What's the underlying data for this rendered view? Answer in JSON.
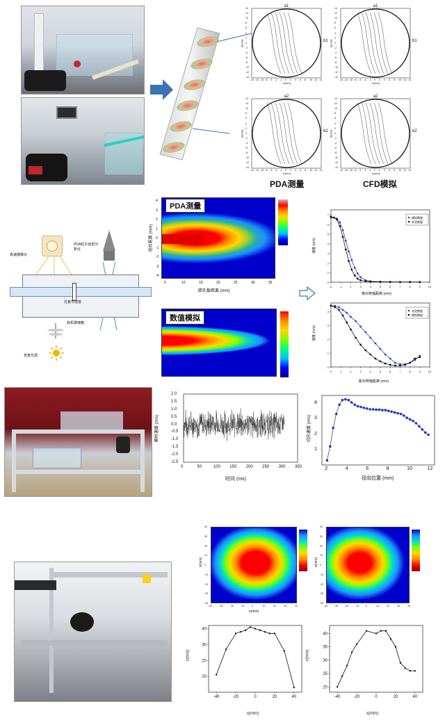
{
  "section1": {
    "contour_titles": [
      "a1",
      "a1",
      "a2",
      "a2"
    ],
    "side_labels": [
      "b1",
      "b1",
      "b2",
      "b2"
    ],
    "y_axis_label": "Z(mm)",
    "x_axis_label": "Y(mm)",
    "x_ticks": [
      "-14",
      "-12",
      "-10",
      "-8",
      "-6",
      "-4",
      "-2",
      "0",
      "2",
      "4",
      "6",
      "8",
      "10",
      "12",
      "14"
    ],
    "y_ticks": [
      "14",
      "12",
      "10",
      "8",
      "6",
      "4",
      "2",
      "0",
      "-2",
      "-4",
      "-6",
      "-8",
      "-10",
      "-12",
      "-14"
    ],
    "caption_left": "PDA测量",
    "caption_right": "CFD模拟"
  },
  "section2": {
    "pda_title": "PDA测量",
    "sim_title": "数值模拟",
    "pda_xlabel": "距孔板距离 (mm)",
    "pda_ylabel": "径向距离 (mm)",
    "pda_xticks": [
      "5",
      "10",
      "15",
      "20",
      "25",
      "30",
      "35"
    ],
    "pda_yticks": [
      "4",
      "3",
      "2",
      "1",
      "0",
      "-1",
      "-2",
      "-3",
      "-4"
    ],
    "diagram_labels": {
      "camera": "高速摄像仪",
      "pda": "PDA粒子动态分析仪",
      "valve": "孔板节流管",
      "tank": "有机玻璃箱",
      "light": "背景光源"
    },
    "right_chart1": {
      "ylabel": "速度 (m/s)",
      "xlabel": "离对称轴距离 (mm)",
      "legend": [
        "模拟数据",
        "实验数据"
      ],
      "yticks": [
        "7",
        "6",
        "5",
        "4",
        "3",
        "2",
        "1",
        "0"
      ],
      "xticks": [
        "0",
        "1",
        "2",
        "3",
        "4",
        "5",
        "6",
        "7",
        "8",
        "9",
        "10"
      ]
    },
    "right_chart2": {
      "ylabel": "速度 (m/s)",
      "xlabel": "距对称轴距离 (mm)",
      "legend": [
        "实验数据",
        "模拟数据"
      ],
      "yticks": [
        "4",
        "3",
        "2",
        "1",
        "0"
      ],
      "xticks": [
        "0",
        "1",
        "2",
        "3",
        "4",
        "5",
        "6",
        "7",
        "8",
        "9",
        "10"
      ]
    }
  },
  "section3": {
    "ts_ylabel": "瞬时速度 (m/s)",
    "ts_xlabel": "时间 (ms)",
    "ts_yticks": [
      "2.0",
      "1.5",
      "1.0",
      "0.5",
      "0.0",
      "-0.5",
      "-1.0",
      "-1.5",
      "-2.0",
      "-2.5"
    ],
    "ts_xticks": [
      "0",
      "50",
      "100",
      "150",
      "200",
      "250",
      "300",
      "350"
    ],
    "prof_ylabel": "切向速度 (m/s)",
    "prof_xlabel": "径向位置 (mm)",
    "prof_yticks": [
      "4",
      "3",
      "2",
      "1"
    ],
    "prof_xticks": [
      "2",
      "4",
      "6",
      "8",
      "10",
      "12"
    ]
  },
  "section4": {
    "map_ylabel": "z(mm)",
    "map_xlabel": "x(mm)",
    "map_xticks": [
      "-40",
      "-30",
      "-20",
      "-10",
      "0",
      "10",
      "20",
      "30",
      "40"
    ],
    "map_yticks": [
      "40",
      "30",
      "20",
      "10",
      "0",
      "-10",
      "-20",
      "-30",
      "-40"
    ],
    "line1_ylabel": "v(m/s)",
    "line1_xlabel": "x(mm)",
    "line1_yticks": [
      "40",
      "30",
      "20",
      "10"
    ],
    "line1_xticks": [
      "-40",
      "-20",
      "0",
      "20",
      "40"
    ],
    "line2_ylabel": "v(m/s)",
    "line2_xlabel": "x(mm)",
    "line2_yticks": [
      "40",
      "35",
      "30",
      "25",
      "20"
    ],
    "line2_xticks": [
      "-40",
      "-20",
      "0",
      "20",
      "40"
    ]
  },
  "chart_data": [
    {
      "type": "line",
      "ylabel": "速度 (m/s)",
      "xlabel": "离对称轴距离 (mm)",
      "ylim": [
        0,
        7.5
      ],
      "xlim": [
        0,
        10
      ],
      "series": [
        {
          "name": "模拟数据",
          "x": [
            0,
            0.3,
            0.6,
            0.9,
            1.2,
            1.5,
            1.8,
            2.1,
            2.4,
            2.7,
            3.0,
            3.5,
            4,
            5,
            6,
            7,
            8,
            9
          ],
          "y": [
            6.7,
            6.7,
            6.6,
            6.2,
            5.4,
            4.3,
            3.2,
            2.3,
            1.5,
            0.9,
            0.5,
            0.2,
            0.1,
            0.05,
            0.03,
            0.02,
            0.02,
            0.02
          ]
        },
        {
          "name": "实验数据",
          "x": [
            0,
            0.3,
            0.6,
            0.9,
            1.2,
            1.5,
            1.8,
            2.1,
            2.4,
            2.7,
            3.0,
            3.5,
            4,
            5,
            6,
            7,
            8,
            9
          ],
          "y": [
            6.8,
            6.7,
            6.5,
            5.8,
            4.7,
            3.4,
            2.2,
            1.3,
            0.7,
            0.35,
            0.2,
            0.1,
            0.05,
            0.03,
            0.02,
            0.02,
            0.02,
            0.02
          ]
        }
      ]
    },
    {
      "type": "line",
      "ylabel": "速度 (m/s)",
      "xlabel": "距对称轴距离 (mm)",
      "ylim": [
        0,
        4.6
      ],
      "xlim": [
        0,
        10
      ],
      "series": [
        {
          "name": "实验数据",
          "x": [
            0,
            0.4,
            0.8,
            1.2,
            1.6,
            2,
            2.5,
            3,
            3.5,
            4,
            4.5,
            5,
            5.5,
            6,
            6.5,
            7,
            7.5,
            8,
            8.5,
            9
          ],
          "y": [
            4.4,
            4.4,
            4.3,
            4.1,
            3.9,
            3.6,
            3.3,
            2.9,
            2.5,
            2.1,
            1.7,
            1.3,
            0.9,
            0.6,
            0.3,
            0.2,
            0.2,
            0.3,
            0.5,
            0.8
          ]
        },
        {
          "name": "模拟数据",
          "x": [
            0,
            0.4,
            0.8,
            1.2,
            1.6,
            2,
            2.5,
            3,
            3.5,
            4,
            4.5,
            5,
            5.5,
            6,
            6.5,
            7,
            7.5,
            8,
            8.5,
            9
          ],
          "y": [
            4.4,
            4.3,
            4.1,
            3.7,
            3.2,
            2.7,
            2.1,
            1.6,
            1.2,
            0.9,
            0.6,
            0.4,
            0.25,
            0.15,
            0.1,
            0.1,
            0.15,
            0.3,
            0.6,
            0.7
          ]
        }
      ]
    },
    {
      "type": "line",
      "ylabel": "瞬时速度 (m/s)",
      "xlabel": "时间 (ms)",
      "xlim": [
        0,
        350
      ],
      "ylim": [
        -2.5,
        2.0
      ],
      "series": [
        {
          "name": "",
          "range_x": [
            0,
            310
          ],
          "mean": 0.0,
          "amplitude": 0.8
        }
      ]
    },
    {
      "type": "scatter",
      "ylabel": "切向速度 (m/s)",
      "xlabel": "径向位置 (mm)",
      "xlim": [
        1.5,
        12.5
      ],
      "ylim": [
        0,
        4.5
      ],
      "series": [
        {
          "name": "",
          "x": [
            2,
            2.3,
            2.6,
            2.9,
            3.2,
            3.5,
            3.8,
            4.1,
            4.4,
            4.7,
            5,
            5.3,
            5.6,
            5.9,
            6.2,
            6.5,
            6.8,
            7.1,
            7.4,
            7.7,
            8,
            8.3,
            8.6,
            8.9,
            9.2,
            9.5,
            9.8,
            10.1,
            10.4,
            10.7,
            11,
            11.3,
            11.6,
            11.9
          ],
          "y": [
            0.3,
            1.2,
            2.4,
            3.3,
            3.9,
            4.2,
            4.25,
            4.2,
            4.05,
            3.9,
            3.8,
            3.75,
            3.7,
            3.65,
            3.6,
            3.6,
            3.58,
            3.58,
            3.55,
            3.55,
            3.5,
            3.45,
            3.4,
            3.35,
            3.3,
            3.2,
            3.05,
            2.95,
            2.85,
            2.7,
            2.5,
            2.3,
            2.1,
            1.95
          ]
        }
      ]
    },
    {
      "type": "line",
      "ylabel": "v(m/s)",
      "xlabel": "x(mm)",
      "xlim": [
        -48,
        48
      ],
      "ylim": [
        0,
        42
      ],
      "series": [
        {
          "name": "",
          "x": [
            -40,
            -30,
            -20,
            -15,
            -10,
            -5,
            0,
            5,
            10,
            15,
            20,
            30,
            40
          ],
          "y": [
            11,
            27,
            37,
            38,
            39,
            41,
            40,
            39,
            38,
            37,
            37,
            26,
            3
          ]
        }
      ]
    },
    {
      "type": "line",
      "ylabel": "v(m/s)",
      "xlabel": "x(mm)",
      "xlim": [
        -48,
        48
      ],
      "ylim": [
        18,
        43
      ],
      "series": [
        {
          "name": "",
          "x": [
            -40,
            -35,
            -30,
            -25,
            -20,
            -10,
            0,
            5,
            10,
            15,
            20,
            25,
            30,
            35,
            40
          ],
          "y": [
            20,
            24,
            28,
            33,
            36,
            41,
            40,
            41,
            41,
            38,
            35,
            29,
            27,
            26,
            26
          ]
        }
      ]
    }
  ]
}
